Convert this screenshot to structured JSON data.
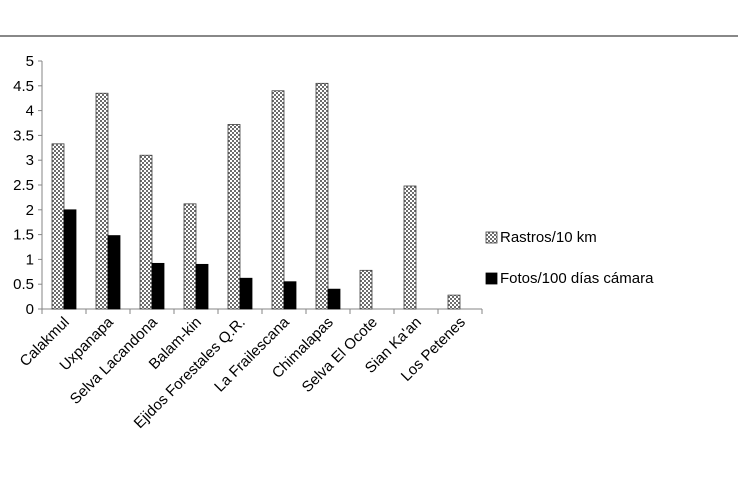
{
  "chart_data": {
    "type": "bar",
    "categories": [
      "Calakmul",
      "Uxpanapa",
      "Selva Lacandona",
      "Balam-kin",
      "Ejidos Forestales Q.R.",
      "La Frailescana",
      "Chimalapas",
      "Selva El Ocote",
      "Sian Ka'an",
      "Los Petenes"
    ],
    "series": [
      {
        "name": "Rastros/10 km",
        "values": [
          3.33,
          4.35,
          3.1,
          2.12,
          3.72,
          4.4,
          4.55,
          0.78,
          2.48,
          0.28
        ],
        "color": "#bfbfbf",
        "pattern": "checker"
      },
      {
        "name": "Fotos/100 días cámara",
        "values": [
          2.0,
          1.48,
          0.92,
          0.9,
          0.62,
          0.55,
          0.4,
          0,
          0,
          0
        ],
        "color": "#000000",
        "pattern": "solid"
      }
    ],
    "y_ticks": [
      "0",
      "0.5",
      "1",
      "1.5",
      "2",
      "2.5",
      "3",
      "3.5",
      "4",
      "4.5",
      "5"
    ],
    "ylim": [
      0,
      5
    ],
    "title": "",
    "xlabel": "",
    "ylabel": "",
    "grid": false,
    "legend_position": "right"
  }
}
